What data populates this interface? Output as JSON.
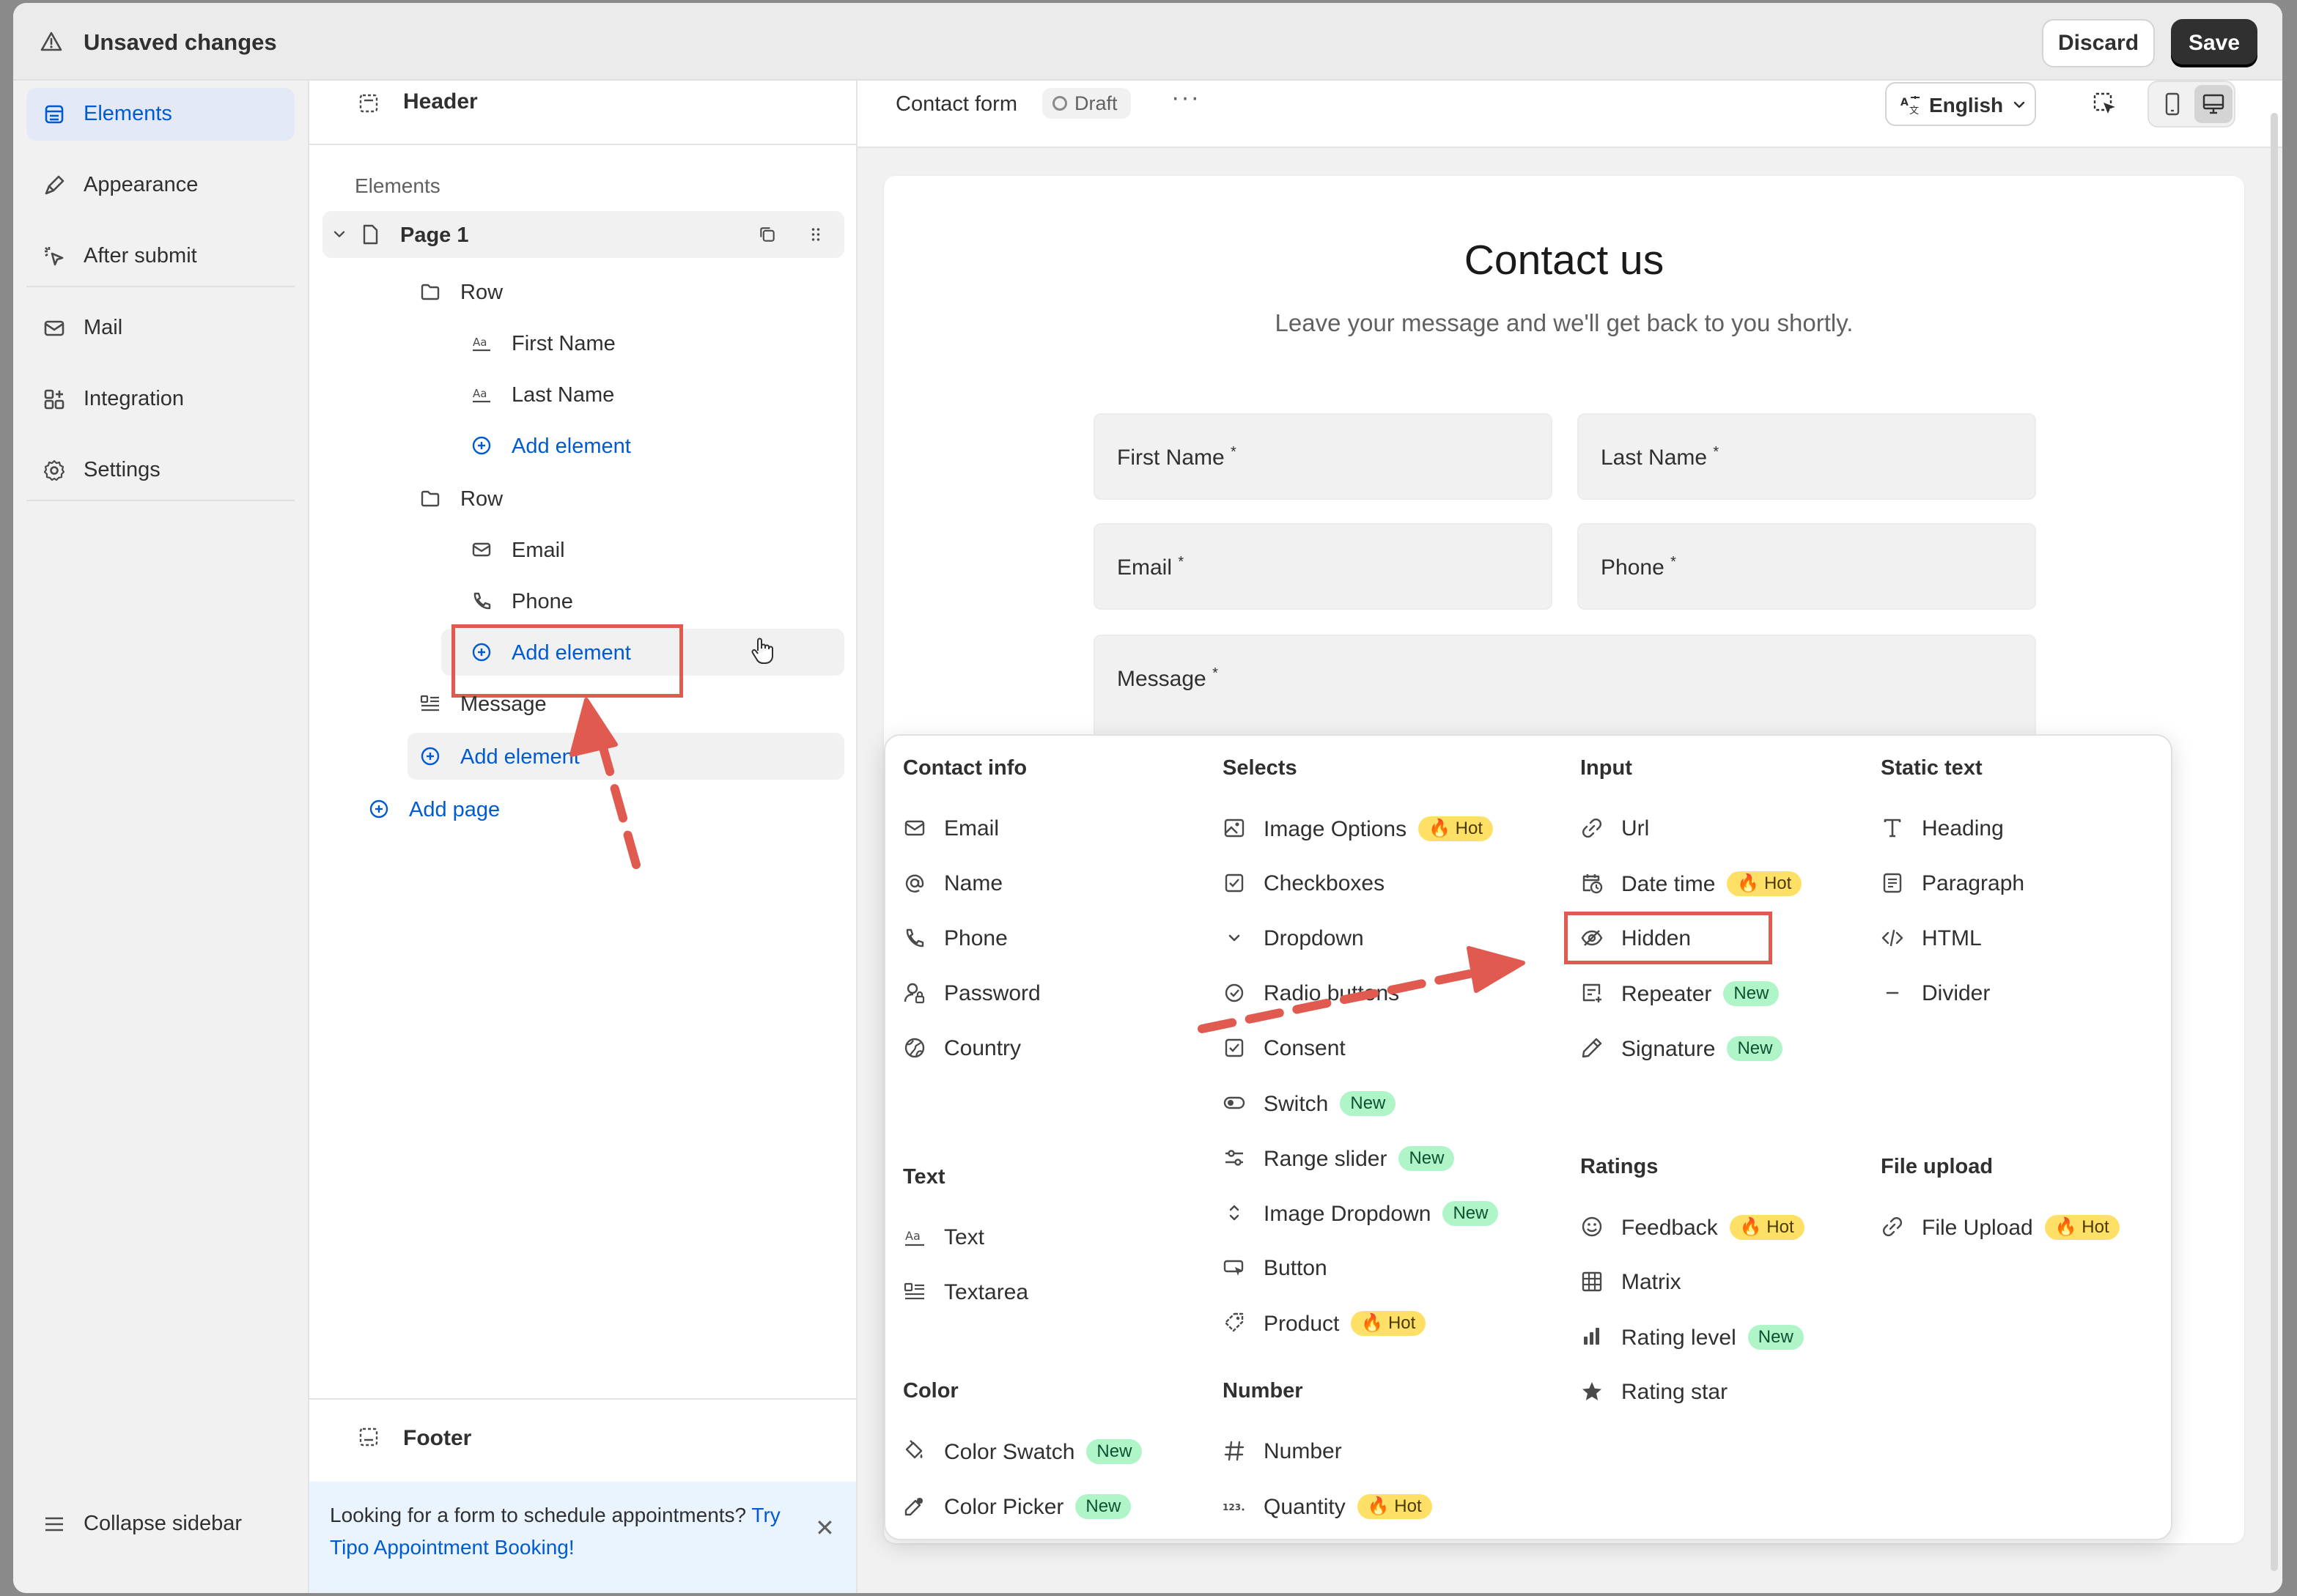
{
  "topbar": {
    "title": "Unsaved changes",
    "discard": "Discard",
    "save": "Save"
  },
  "nav": {
    "items": [
      {
        "label": "Elements",
        "icon": "elements-icon",
        "active": true
      },
      {
        "label": "Appearance",
        "icon": "brush-icon"
      },
      {
        "label": "After submit",
        "icon": "pointer-icon"
      },
      {
        "label": "Mail",
        "icon": "mail-icon"
      },
      {
        "label": "Integration",
        "icon": "integration-icon"
      },
      {
        "label": "Settings",
        "icon": "gear-icon"
      }
    ],
    "collapse": "Collapse sidebar"
  },
  "tree": {
    "header": "Header",
    "section": "Elements",
    "page": "Page 1",
    "row1": "Row",
    "row1_items": [
      "First Name",
      "Last Name"
    ],
    "row2": "Row",
    "row2_items": [
      "Email",
      "Phone"
    ],
    "add_element": "Add element",
    "message": "Message",
    "add_page": "Add page",
    "footer": "Footer",
    "banner_text": "Looking for a form to schedule appointments?",
    "banner_link": "Try Tipo Appointment Booking!"
  },
  "canvas": {
    "form_name": "Contact form",
    "status": "Draft",
    "more": "···",
    "language": "English",
    "title": "Contact us",
    "subtitle": "Leave your message and we'll get back to you shortly.",
    "fields": {
      "first_name": "First Name",
      "last_name": "Last Name",
      "email": "Email",
      "phone": "Phone",
      "message": "Message"
    },
    "required_mark": "*"
  },
  "popover": {
    "groups": {
      "contact": "Contact info",
      "selects": "Selects",
      "input": "Input",
      "static": "Static text",
      "text": "Text",
      "ratings": "Ratings",
      "file": "File upload",
      "color": "Color",
      "number": "Number"
    },
    "contact": [
      "Email",
      "Name",
      "Phone",
      "Password",
      "Country"
    ],
    "selects": [
      "Image Options",
      "Checkboxes",
      "Dropdown",
      "Radio buttons",
      "Consent",
      "Switch",
      "Range slider",
      "Image Dropdown",
      "Button",
      "Product"
    ],
    "input": [
      "Url",
      "Date time",
      "Hidden",
      "Repeater",
      "Signature"
    ],
    "static": [
      "Heading",
      "Paragraph",
      "HTML",
      "Divider"
    ],
    "text": [
      "Text",
      "Textarea"
    ],
    "ratings": [
      "Feedback",
      "Matrix",
      "Rating level",
      "Rating star"
    ],
    "file": [
      "File Upload"
    ],
    "color": [
      "Color Swatch",
      "Color Picker"
    ],
    "number": [
      "Number",
      "Quantity"
    ],
    "badge_hot": "🔥 Hot",
    "badge_new": "New"
  },
  "colors": {
    "accent": "#005bd3",
    "annotation": "#e05a4f",
    "hot": "#ffe066",
    "new": "#aff5c8"
  }
}
